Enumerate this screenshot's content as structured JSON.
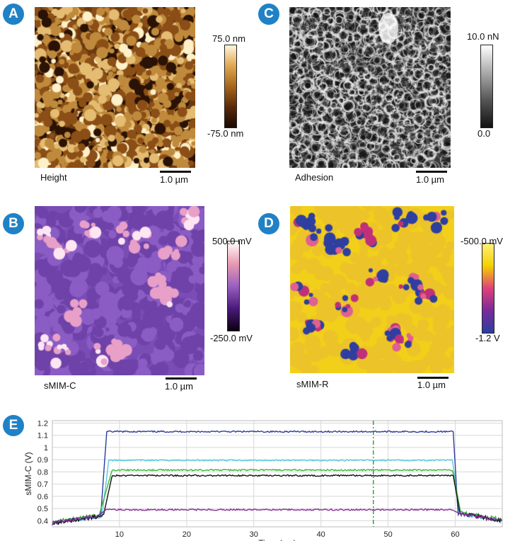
{
  "panels": {
    "A": {
      "badge": "A",
      "label": "Height",
      "scale": "1.0 µm",
      "cbar_max": "75.0 nm",
      "cbar_min": "-75.0 nm",
      "colormap": [
        "#1a0a02",
        "#5a2a08",
        "#a8661c",
        "#e0a850",
        "#fff5dc"
      ]
    },
    "C": {
      "badge": "C",
      "label": "Adhesion",
      "scale": "1.0 µm",
      "cbar_max": "10.0 nN",
      "cbar_min": "0.0",
      "colormap": [
        "#111111",
        "#555555",
        "#aaaaaa",
        "#ffffff"
      ]
    },
    "B": {
      "badge": "B",
      "label": "sMIM-C",
      "scale": "1.0 µm",
      "cbar_max": "500.0 mV",
      "cbar_min": "-250.0 mV",
      "colormap": [
        "#0a0010",
        "#4a1a7a",
        "#9a60c0",
        "#e89ab0",
        "#ffffff"
      ]
    },
    "D": {
      "badge": "D",
      "label": "sMIM-R",
      "scale": "1.0 µm",
      "cbar_max": "-500.0 mV",
      "cbar_min": "-1.2 V",
      "colormap": [
        "#2a3fa0",
        "#7a2a9a",
        "#e0407a",
        "#f5d000",
        "#fff07a"
      ]
    },
    "E": {
      "badge": "E"
    }
  },
  "chart_data": {
    "type": "line",
    "xlabel": "Time (ms)",
    "ylabel": "sMIM-C (V)",
    "xlim": [
      0,
      67
    ],
    "ylim": [
      0.35,
      1.22
    ],
    "xticks": [
      "10",
      "20",
      "30",
      "40",
      "50",
      "60"
    ],
    "yticks": [
      "0.4",
      "0.5",
      "0.6",
      "0.7",
      "0.8",
      "0.9",
      "1",
      "1.1",
      "1.2"
    ],
    "vline_x": 47.8,
    "vline_color": "#2e9a2e",
    "series": [
      {
        "color": "#2b3a9c",
        "baseline": 0.38,
        "high": 1.13,
        "rise": [
          7.2,
          8.1
        ],
        "fall": [
          59.7,
          60.4
        ]
      },
      {
        "color": "#58c8e0",
        "baseline": 0.38,
        "high": 0.895,
        "rise": [
          7.4,
          8.4
        ],
        "fall": [
          59.6,
          60.6
        ]
      },
      {
        "color": "#3cb43c",
        "baseline": 0.39,
        "high": 0.815,
        "rise": [
          7.0,
          8.9
        ],
        "fall": [
          59.6,
          60.8
        ]
      },
      {
        "color": "#111111",
        "baseline": 0.38,
        "high": 0.77,
        "rise": [
          7.6,
          8.9
        ],
        "fall": [
          59.7,
          60.7
        ]
      },
      {
        "color": "#8a2a9a",
        "baseline": 0.38,
        "high": 0.49,
        "rise": [
          6.8,
          8.0
        ],
        "fall": [
          59.5,
          60.6
        ]
      }
    ]
  }
}
